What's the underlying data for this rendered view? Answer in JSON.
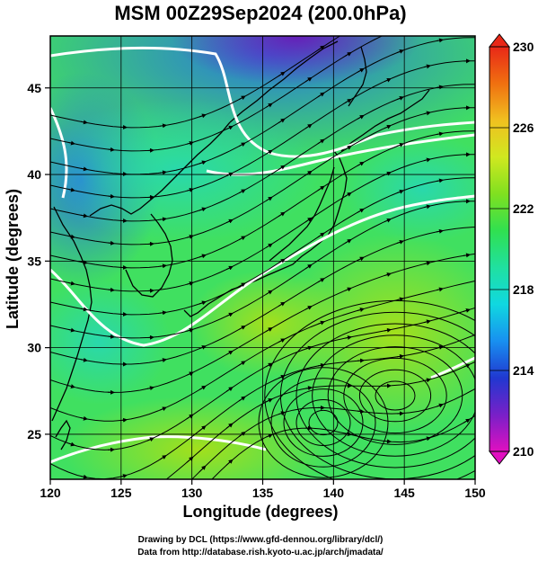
{
  "title": "MSM 00Z29Sep2024 (200.0hPa)",
  "x_axis": {
    "label": "Longitude (degrees)",
    "range": [
      120,
      150
    ],
    "ticks": [
      "120",
      "125",
      "130",
      "135",
      "140",
      "145",
      "150"
    ]
  },
  "y_axis": {
    "label": "Latitude  (degrees)",
    "range": [
      22.4,
      48
    ],
    "ticks": [
      "25",
      "30",
      "35",
      "40",
      "45"
    ]
  },
  "colorbar": {
    "range": [
      210,
      230
    ],
    "ticks": [
      "210",
      "214",
      "218",
      "222",
      "226",
      "230"
    ],
    "colors": [
      "#e010c0",
      "#7820c8",
      "#2038d0",
      "#1890f0",
      "#10d8e0",
      "#20e0a0",
      "#30e050",
      "#80e020",
      "#d0e820",
      "#f0c020",
      "#f07010",
      "#e82818"
    ]
  },
  "field_colors": {
    "cold": "#6a18b8",
    "cool": "#2a72e0",
    "mid": "#28d8b0",
    "warm": "#40e060",
    "warmest": "#a8e018"
  },
  "credits": {
    "line1": "Drawing by DCL (https://www.gfd-dennou.org/library/dcl/)",
    "line2": "Data from http://database.rish.kyoto-u.ac.jp/arch/jmadata/"
  }
}
